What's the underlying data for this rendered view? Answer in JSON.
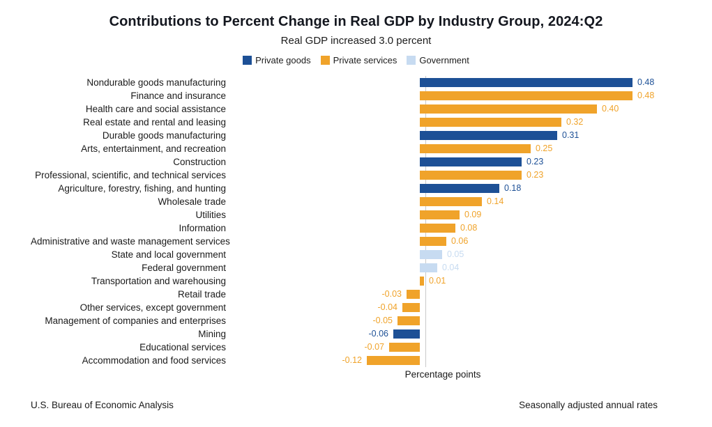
{
  "header": {
    "title": "Contributions to Percent Change in Real GDP by Industry Group, 2024:Q2",
    "subtitle": "Real GDP increased 3.0 percent"
  },
  "legend": [
    {
      "label": "Private goods",
      "color": "#1d5096"
    },
    {
      "label": "Private services",
      "color": "#f0a32a"
    },
    {
      "label": "Government",
      "color": "#c7dbf1"
    }
  ],
  "footer": {
    "left": "U.S. Bureau of Economic Analysis",
    "right": "Seasonally adjusted annual rates"
  },
  "chart_data": {
    "type": "bar",
    "orientation": "horizontal",
    "title": "Contributions to Percent Change in Real GDP by Industry Group, 2024:Q2",
    "subtitle": "Real GDP increased 3.0 percent",
    "xlabel": "Percentage points",
    "xlim": [
      -0.2,
      0.58
    ],
    "grid": false,
    "legend_position": "top",
    "groups": {
      "goods": "Private goods",
      "services": "Private services",
      "government": "Government"
    },
    "colors": {
      "goods": "#1d5096",
      "services": "#f0a32a",
      "government": "#c7dbf1"
    },
    "bars": [
      {
        "category": "Nondurable goods manufacturing",
        "value": 0.48,
        "display": "0.48",
        "group": "goods"
      },
      {
        "category": "Finance and insurance",
        "value": 0.48,
        "display": "0.48",
        "group": "services"
      },
      {
        "category": "Health care and social assistance",
        "value": 0.4,
        "display": "0.40",
        "group": "services"
      },
      {
        "category": "Real estate and rental and leasing",
        "value": 0.32,
        "display": "0.32",
        "group": "services"
      },
      {
        "category": "Durable goods manufacturing",
        "value": 0.31,
        "display": "0.31",
        "group": "goods"
      },
      {
        "category": "Arts, entertainment, and recreation",
        "value": 0.25,
        "display": "0.25",
        "group": "services"
      },
      {
        "category": "Construction",
        "value": 0.23,
        "display": "0.23",
        "group": "goods"
      },
      {
        "category": "Professional, scientific, and technical services",
        "value": 0.23,
        "display": "0.23",
        "group": "services"
      },
      {
        "category": "Agriculture, forestry, fishing, and hunting",
        "value": 0.18,
        "display": "0.18",
        "group": "goods"
      },
      {
        "category": "Wholesale trade",
        "value": 0.14,
        "display": "0.14",
        "group": "services"
      },
      {
        "category": "Utilities",
        "value": 0.09,
        "display": "0.09",
        "group": "services"
      },
      {
        "category": "Information",
        "value": 0.08,
        "display": "0.08",
        "group": "services"
      },
      {
        "category": "Administrative and waste management services",
        "value": 0.06,
        "display": "0.06",
        "group": "services"
      },
      {
        "category": "State and local government",
        "value": 0.05,
        "display": "0.05",
        "group": "government"
      },
      {
        "category": "Federal government",
        "value": 0.04,
        "display": "0.04",
        "group": "government"
      },
      {
        "category": "Transportation and warehousing",
        "value": 0.01,
        "display": "0.01",
        "group": "services"
      },
      {
        "category": "Retail trade",
        "value": -0.03,
        "display": "-0.03",
        "group": "services"
      },
      {
        "category": "Other services, except government",
        "value": -0.04,
        "display": "-0.04",
        "group": "services"
      },
      {
        "category": "Management of companies and enterprises",
        "value": -0.05,
        "display": "-0.05",
        "group": "services"
      },
      {
        "category": "Mining",
        "value": -0.06,
        "display": "-0.06",
        "group": "goods"
      },
      {
        "category": "Educational services",
        "value": -0.07,
        "display": "-0.07",
        "group": "services"
      },
      {
        "category": "Accommodation and food services",
        "value": -0.12,
        "display": "-0.12",
        "group": "services"
      }
    ]
  }
}
